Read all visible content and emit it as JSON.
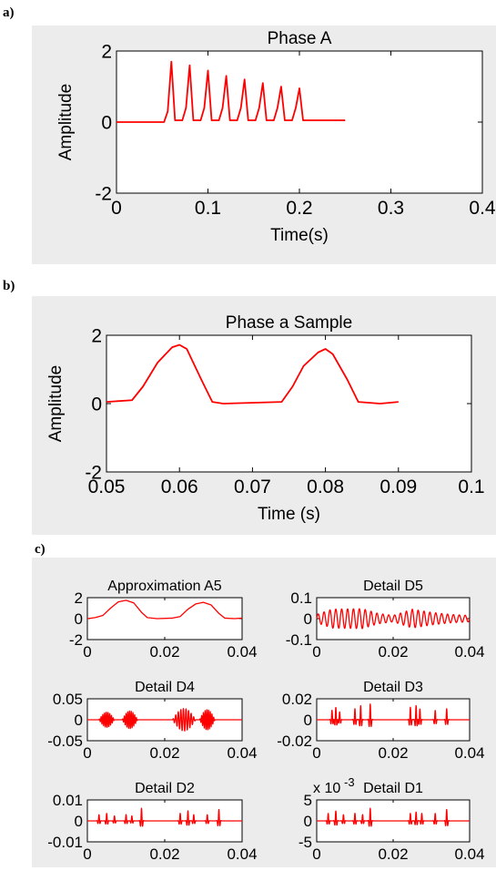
{
  "panel_labels": [
    "a)",
    "b)",
    "c)"
  ],
  "chart_data": [
    {
      "id": "a",
      "type": "line",
      "title": "Phase A",
      "xlabel": "Time(s)",
      "ylabel": "Amplitude",
      "xlim": [
        0,
        0.4
      ],
      "ylim": [
        -2,
        2
      ],
      "xticks": [
        0,
        0.1,
        0.2,
        0.3,
        0.4
      ],
      "xtick_labels": [
        "0",
        "0.1",
        "0.2",
        "0.3",
        "0.4"
      ],
      "yticks": [
        -2,
        0,
        2
      ],
      "ytick_labels": [
        "-2",
        "0",
        "2"
      ],
      "grid": false,
      "series": [
        {
          "color": "#ff0000",
          "points": [
            [
              0,
              0
            ],
            [
              0.052,
              0
            ],
            [
              0.056,
              0.3
            ],
            [
              0.06,
              1.7
            ],
            [
              0.064,
              0.05
            ],
            [
              0.072,
              0.05
            ],
            [
              0.076,
              0.4
            ],
            [
              0.08,
              1.6
            ],
            [
              0.084,
              0.05
            ],
            [
              0.092,
              0.05
            ],
            [
              0.096,
              0.4
            ],
            [
              0.1,
              1.45
            ],
            [
              0.104,
              0.05
            ],
            [
              0.112,
              0.05
            ],
            [
              0.116,
              0.4
            ],
            [
              0.12,
              1.3
            ],
            [
              0.124,
              0.05
            ],
            [
              0.132,
              0.05
            ],
            [
              0.136,
              0.4
            ],
            [
              0.14,
              1.2
            ],
            [
              0.144,
              0.05
            ],
            [
              0.152,
              0.05
            ],
            [
              0.156,
              0.4
            ],
            [
              0.16,
              1.1
            ],
            [
              0.164,
              0.05
            ],
            [
              0.172,
              0.05
            ],
            [
              0.176,
              0.4
            ],
            [
              0.18,
              1.0
            ],
            [
              0.184,
              0.05
            ],
            [
              0.192,
              0.05
            ],
            [
              0.196,
              0.4
            ],
            [
              0.2,
              0.95
            ],
            [
              0.204,
              0.05
            ],
            [
              0.25,
              0.05
            ]
          ]
        }
      ]
    },
    {
      "id": "b",
      "type": "line",
      "title": "Phase a Sample",
      "xlabel": "Time (s)",
      "ylabel": "Amplitude",
      "xlim": [
        0.05,
        0.1
      ],
      "ylim": [
        -2,
        2
      ],
      "xticks": [
        0.05,
        0.06,
        0.07,
        0.08,
        0.09,
        0.1
      ],
      "xtick_labels": [
        "0.05",
        "0.06",
        "0.07",
        "0.08",
        "0.09",
        "0.1"
      ],
      "yticks": [
        -2,
        0,
        2
      ],
      "ytick_labels": [
        "-2",
        "0",
        "2"
      ],
      "grid": false,
      "series": [
        {
          "color": "#ff0000",
          "points": [
            [
              0.05,
              0.05
            ],
            [
              0.0535,
              0.1
            ],
            [
              0.055,
              0.5
            ],
            [
              0.057,
              1.2
            ],
            [
              0.059,
              1.65
            ],
            [
              0.06,
              1.72
            ],
            [
              0.061,
              1.6
            ],
            [
              0.063,
              0.7
            ],
            [
              0.0645,
              0.05
            ],
            [
              0.066,
              0.0
            ],
            [
              0.074,
              0.05
            ],
            [
              0.0755,
              0.5
            ],
            [
              0.077,
              1.1
            ],
            [
              0.079,
              1.5
            ],
            [
              0.08,
              1.6
            ],
            [
              0.081,
              1.45
            ],
            [
              0.083,
              0.7
            ],
            [
              0.0845,
              0.05
            ],
            [
              0.0875,
              0.0
            ],
            [
              0.09,
              0.05
            ]
          ]
        }
      ]
    },
    {
      "id": "c-a5",
      "type": "line",
      "title": "Approximation A5",
      "xlim": [
        0,
        0.04
      ],
      "ylim": [
        -2,
        2
      ],
      "xticks": [
        0,
        0.02,
        0.04
      ],
      "xtick_labels": [
        "0",
        "0.02",
        "0.04"
      ],
      "yticks": [
        -2,
        0,
        2
      ],
      "ytick_labels": [
        "-2",
        "0",
        "2"
      ],
      "series": [
        {
          "color": "#ff0000",
          "points": [
            [
              0,
              0
            ],
            [
              0.002,
              0.1
            ],
            [
              0.004,
              0.3
            ],
            [
              0.006,
              1.0
            ],
            [
              0.008,
              1.6
            ],
            [
              0.01,
              1.75
            ],
            [
              0.012,
              1.5
            ],
            [
              0.014,
              0.6
            ],
            [
              0.0155,
              0.1
            ],
            [
              0.018,
              0.0
            ],
            [
              0.022,
              0.05
            ],
            [
              0.024,
              0.2
            ],
            [
              0.026,
              0.9
            ],
            [
              0.028,
              1.4
            ],
            [
              0.03,
              1.55
            ],
            [
              0.032,
              1.3
            ],
            [
              0.034,
              0.5
            ],
            [
              0.0355,
              0.05
            ],
            [
              0.038,
              0.0
            ],
            [
              0.04,
              0.05
            ]
          ]
        }
      ]
    },
    {
      "id": "c-d5",
      "type": "line",
      "title": "Detail D5",
      "xlim": [
        0,
        0.04
      ],
      "ylim": [
        -0.1,
        0.1
      ],
      "xticks": [
        0,
        0.02,
        0.04
      ],
      "xtick_labels": [
        "0",
        "0.02",
        "0.04"
      ],
      "yticks": [
        -0.1,
        0,
        0.1
      ],
      "ytick_labels": [
        "-0.1",
        "0",
        "0.1"
      ],
      "series": [
        {
          "color": "#ff0000",
          "generated": {
            "kind": "oscillation",
            "amplitude": 0.05,
            "cycles": 26,
            "envelope": [
              [
                0,
                0.4
              ],
              [
                0.004,
                0.9
              ],
              [
                0.012,
                0.95
              ],
              [
                0.016,
                0.5
              ],
              [
                0.02,
                0.3
              ],
              [
                0.025,
                0.9
              ],
              [
                0.03,
                0.6
              ],
              [
                0.035,
                0.4
              ],
              [
                0.04,
                0.3
              ]
            ]
          }
        }
      ]
    },
    {
      "id": "c-d4",
      "type": "line",
      "title": "Detail D4",
      "xlim": [
        0,
        0.04
      ],
      "ylim": [
        -0.05,
        0.05
      ],
      "xticks": [
        0,
        0.02,
        0.04
      ],
      "xtick_labels": [
        "0",
        "0.02",
        "0.04"
      ],
      "yticks": [
        -0.05,
        0,
        0.05
      ],
      "ytick_labels": [
        "-0.05",
        "0",
        "0.05"
      ],
      "series": [
        {
          "color": "#ff0000",
          "generated": {
            "kind": "bursts",
            "amplitude": 0.03,
            "bursts": [
              [
                0.003,
                0.007,
                0.6
              ],
              [
                0.009,
                0.013,
                0.7
              ],
              [
                0.022,
                0.028,
                0.9
              ],
              [
                0.029,
                0.033,
                0.8
              ]
            ]
          }
        }
      ]
    },
    {
      "id": "c-d3",
      "type": "line",
      "title": "Detail D3",
      "xlim": [
        0,
        0.04
      ],
      "ylim": [
        -0.02,
        0.02
      ],
      "xticks": [
        0,
        0.02,
        0.04
      ],
      "xtick_labels": [
        "0",
        "0.02",
        "0.04"
      ],
      "yticks": [
        -0.02,
        0,
        0.02
      ],
      "ytick_labels": [
        "-0.02",
        "0",
        "0.02"
      ],
      "series": [
        {
          "color": "#ff0000",
          "generated": {
            "kind": "spikes",
            "amplitude": 0.015,
            "spikes": [
              [
                0.004,
                0.6
              ],
              [
                0.005,
                0.8
              ],
              [
                0.006,
                0.5
              ],
              [
                0.01,
                0.7
              ],
              [
                0.0115,
                0.9
              ],
              [
                0.014,
                1.0
              ],
              [
                0.0245,
                0.8
              ],
              [
                0.026,
                0.9
              ],
              [
                0.027,
                0.7
              ],
              [
                0.031,
                0.6
              ],
              [
                0.034,
                0.7
              ]
            ]
          }
        }
      ]
    },
    {
      "id": "c-d2",
      "type": "line",
      "title": "Detail D2",
      "xlim": [
        0,
        0.04
      ],
      "ylim": [
        -0.01,
        0.01
      ],
      "xticks": [
        0,
        0.02,
        0.04
      ],
      "xtick_labels": [
        "0",
        "0.02",
        "0.04"
      ],
      "yticks": [
        -0.01,
        0,
        0.01
      ],
      "ytick_labels": [
        "-0.01",
        "0",
        "0.01"
      ],
      "series": [
        {
          "color": "#ff0000",
          "generated": {
            "kind": "spikes",
            "amplitude": 0.006,
            "spikes": [
              [
                0.003,
                0.5
              ],
              [
                0.005,
                0.6
              ],
              [
                0.007,
                0.4
              ],
              [
                0.01,
                0.5
              ],
              [
                0.0115,
                0.4
              ],
              [
                0.014,
                1.0
              ],
              [
                0.024,
                0.6
              ],
              [
                0.026,
                0.8
              ],
              [
                0.0275,
                0.5
              ],
              [
                0.031,
                0.5
              ],
              [
                0.034,
                0.9
              ]
            ]
          }
        }
      ]
    },
    {
      "id": "c-d1",
      "type": "line",
      "title": "Detail D1",
      "exponent_label": "x 10",
      "exponent": "-3",
      "xlim": [
        0,
        0.04
      ],
      "ylim": [
        -5,
        5
      ],
      "xticks": [
        0,
        0.02,
        0.04
      ],
      "xtick_labels": [
        "0",
        "0.02",
        "0.04"
      ],
      "yticks": [
        -5,
        0,
        5
      ],
      "ytick_labels": [
        "-5",
        "0",
        "5"
      ],
      "series": [
        {
          "color": "#ff0000",
          "generated": {
            "kind": "spikes",
            "amplitude": 3,
            "spikes": [
              [
                0.003,
                0.6
              ],
              [
                0.005,
                0.8
              ],
              [
                0.007,
                0.5
              ],
              [
                0.01,
                0.6
              ],
              [
                0.012,
                0.5
              ],
              [
                0.014,
                1.0
              ],
              [
                0.0245,
                0.6
              ],
              [
                0.026,
                0.7
              ],
              [
                0.0275,
                0.6
              ],
              [
                0.031,
                0.6
              ],
              [
                0.034,
                0.9
              ]
            ]
          }
        }
      ]
    }
  ]
}
